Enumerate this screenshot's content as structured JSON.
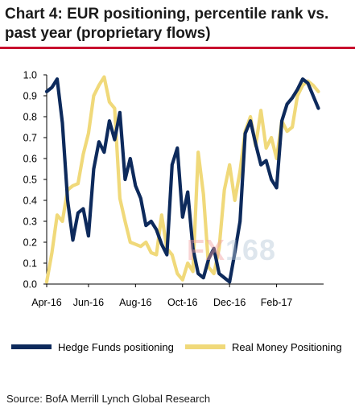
{
  "title_line1": "Chart 4: EUR positioning, percentile rank vs.",
  "title_line2": "past year (proprietary flows)",
  "source": "Source: BofA Merrill Lynch Global Research",
  "watermark": {
    "fx": "FX",
    "num": "168"
  },
  "chart_data": {
    "type": "line",
    "title": "Chart 4: EUR positioning, percentile rank vs. past year (proprietary flows)",
    "xlabel": "",
    "ylabel": "",
    "ylim": [
      0,
      1.0
    ],
    "yticks": [
      "0.0",
      "0.1",
      "0.2",
      "0.3",
      "0.4",
      "0.5",
      "0.6",
      "0.7",
      "0.8",
      "0.9",
      "1.0"
    ],
    "x_ticks": [
      {
        "label": "Apr-16",
        "x": 0
      },
      {
        "label": "Jun-16",
        "x": 8
      },
      {
        "label": "Aug-16",
        "x": 17
      },
      {
        "label": "Oct-16",
        "x": 26
      },
      {
        "label": "Dec-16",
        "x": 35
      },
      {
        "label": "Feb-17",
        "x": 44
      }
    ],
    "xlim": [
      0,
      53
    ],
    "grid": false,
    "legend_position": "bottom",
    "series": [
      {
        "name": "Hedge Funds positioning",
        "color": "#0d2a5c",
        "points": [
          [
            0,
            0.92
          ],
          [
            1,
            0.94
          ],
          [
            2,
            0.98
          ],
          [
            3,
            0.77
          ],
          [
            4,
            0.4
          ],
          [
            5,
            0.21
          ],
          [
            6,
            0.34
          ],
          [
            7,
            0.36
          ],
          [
            8,
            0.23
          ],
          [
            9,
            0.55
          ],
          [
            10,
            0.68
          ],
          [
            11,
            0.63
          ],
          [
            12,
            0.78
          ],
          [
            13,
            0.69
          ],
          [
            14,
            0.82
          ],
          [
            15,
            0.5
          ],
          [
            16,
            0.6
          ],
          [
            17,
            0.47
          ],
          [
            18,
            0.41
          ],
          [
            19,
            0.28
          ],
          [
            20,
            0.3
          ],
          [
            21,
            0.26
          ],
          [
            22,
            0.19
          ],
          [
            23,
            0.14
          ],
          [
            24,
            0.57
          ],
          [
            25,
            0.65
          ],
          [
            26,
            0.32
          ],
          [
            27,
            0.44
          ],
          [
            28,
            0.17
          ],
          [
            29,
            0.05
          ],
          [
            30,
            0.03
          ],
          [
            31,
            0.12
          ],
          [
            32,
            0.17
          ],
          [
            33,
            0.05
          ],
          [
            34,
            0.03
          ],
          [
            35,
            0.01
          ],
          [
            36,
            0.15
          ],
          [
            37,
            0.3
          ],
          [
            38,
            0.72
          ],
          [
            39,
            0.78
          ],
          [
            40,
            0.67
          ],
          [
            41,
            0.57
          ],
          [
            42,
            0.59
          ],
          [
            43,
            0.5
          ],
          [
            44,
            0.46
          ],
          [
            45,
            0.78
          ],
          [
            46,
            0.86
          ],
          [
            47,
            0.89
          ],
          [
            48,
            0.93
          ],
          [
            49,
            0.98
          ],
          [
            50,
            0.96
          ],
          [
            51,
            0.9
          ],
          [
            52,
            0.84
          ]
        ]
      },
      {
        "name": "Real Money Positioning",
        "color": "#f0d97a",
        "points": [
          [
            0,
            0.01
          ],
          [
            1,
            0.15
          ],
          [
            2,
            0.33
          ],
          [
            3,
            0.3
          ],
          [
            4,
            0.45
          ],
          [
            5,
            0.47
          ],
          [
            6,
            0.48
          ],
          [
            7,
            0.62
          ],
          [
            8,
            0.72
          ],
          [
            9,
            0.9
          ],
          [
            10,
            0.95
          ],
          [
            11,
            0.99
          ],
          [
            12,
            0.87
          ],
          [
            13,
            0.84
          ],
          [
            14,
            0.41
          ],
          [
            15,
            0.3
          ],
          [
            16,
            0.2
          ],
          [
            17,
            0.19
          ],
          [
            18,
            0.18
          ],
          [
            19,
            0.2
          ],
          [
            20,
            0.15
          ],
          [
            21,
            0.14
          ],
          [
            22,
            0.33
          ],
          [
            23,
            0.17
          ],
          [
            24,
            0.14
          ],
          [
            25,
            0.05
          ],
          [
            26,
            0.02
          ],
          [
            27,
            0.1
          ],
          [
            28,
            0.06
          ],
          [
            29,
            0.63
          ],
          [
            30,
            0.43
          ],
          [
            31,
            0.08
          ],
          [
            32,
            0.05
          ],
          [
            33,
            0.17
          ],
          [
            34,
            0.45
          ],
          [
            35,
            0.57
          ],
          [
            36,
            0.4
          ],
          [
            37,
            0.54
          ],
          [
            38,
            0.73
          ],
          [
            39,
            0.8
          ],
          [
            40,
            0.66
          ],
          [
            41,
            0.83
          ],
          [
            42,
            0.65
          ],
          [
            43,
            0.7
          ],
          [
            44,
            0.6
          ],
          [
            45,
            0.78
          ],
          [
            46,
            0.73
          ],
          [
            47,
            0.75
          ],
          [
            48,
            0.9
          ],
          [
            49,
            0.95
          ],
          [
            50,
            0.97
          ],
          [
            51,
            0.95
          ],
          [
            52,
            0.92
          ]
        ]
      }
    ]
  }
}
